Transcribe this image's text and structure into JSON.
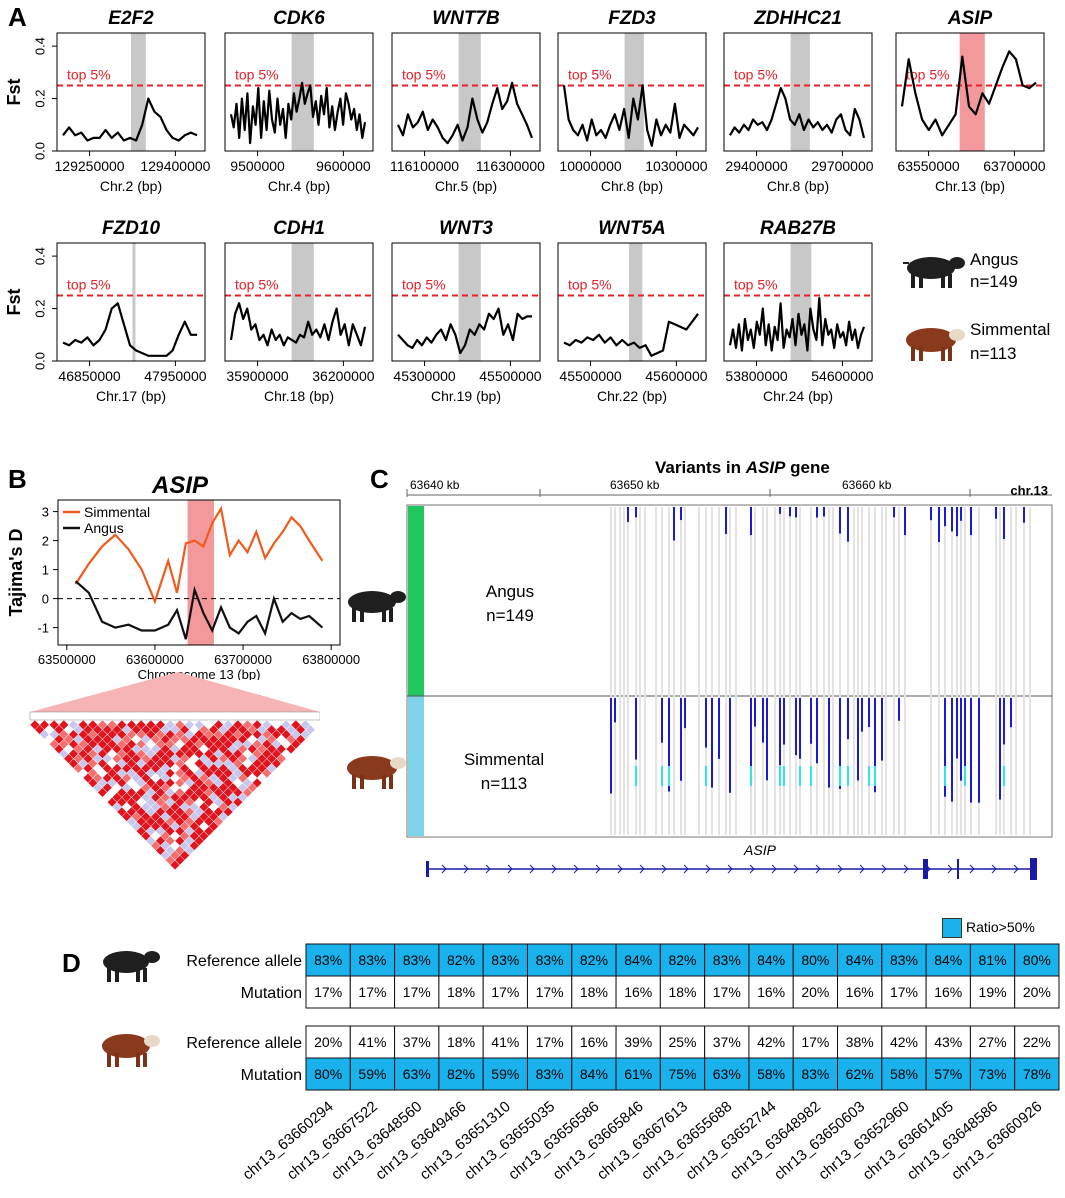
{
  "panel_labels": {
    "a": "A",
    "b": "B",
    "c": "C",
    "d": "D"
  },
  "colors": {
    "threshold": "#e8202a",
    "highlight_gray": "#c8c8c8",
    "highlight_pink": "#f3999c",
    "simmental": "#f05a1e",
    "angus": "#111111",
    "angus_bar": "#22c55e",
    "simmental_bar": "#7fd3e8",
    "variant_dark": "#1a1adb",
    "variant_light": "#2ee6e6",
    "cell_blue": "#1ab2ec",
    "gene_line": "#1a1aa8"
  },
  "panel_a": {
    "y_label": "Fst",
    "threshold_label": "top 5%",
    "y_ticks": [
      "0.0",
      "0.2",
      "0.4"
    ],
    "groups": {
      "angus": {
        "name": "Angus",
        "n": "n=149"
      },
      "simmental": {
        "name": "Simmental",
        "n": "n=113"
      }
    }
  },
  "chart_data": [
    {
      "type": "line",
      "title": "E2F2",
      "xlabel": "Chr.2 (bp)",
      "ylabel": "Fst",
      "x_ticks": [
        "129250000",
        "129400000"
      ],
      "ylim": [
        0,
        0.45
      ],
      "threshold": 0.25,
      "values": [
        0.06,
        0.09,
        0.06,
        0.07,
        0.04,
        0.05,
        0.05,
        0.08,
        0.05,
        0.07,
        0.04,
        0.05,
        0.04,
        0.1,
        0.2,
        0.15,
        0.13,
        0.08,
        0.05,
        0.04,
        0.06,
        0.07,
        0.06
      ]
    },
    {
      "type": "line",
      "title": "CDK6",
      "xlabel": "Chr.4 (bp)",
      "ylabel": "Fst",
      "x_ticks": [
        "9500000",
        "9600000"
      ],
      "ylim": [
        0,
        0.45
      ],
      "threshold": 0.25,
      "values": [
        0.14,
        0.09,
        0.18,
        0.05,
        0.2,
        0.08,
        0.22,
        0.03,
        0.17,
        0.1,
        0.24,
        0.05,
        0.19,
        0.08,
        0.23,
        0.12,
        0.07,
        0.2,
        0.1,
        0.16,
        0.05,
        0.18,
        0.12,
        0.22,
        0.15,
        0.2,
        0.26,
        0.18,
        0.22,
        0.25,
        0.13,
        0.19,
        0.1,
        0.21,
        0.14,
        0.24,
        0.09,
        0.17,
        0.08,
        0.15,
        0.2,
        0.1,
        0.22,
        0.18,
        0.12,
        0.16,
        0.08,
        0.14,
        0.05,
        0.11
      ]
    },
    {
      "type": "line",
      "title": "WNT7B",
      "xlabel": "Chr.5 (bp)",
      "ylabel": "Fst",
      "x_ticks": [
        "116100000",
        "116300000"
      ],
      "ylim": [
        0,
        0.45
      ],
      "threshold": 0.25,
      "values": [
        0.1,
        0.06,
        0.14,
        0.09,
        0.11,
        0.15,
        0.08,
        0.12,
        0.09,
        0.05,
        0.03,
        0.06,
        0.1,
        0.04,
        0.09,
        0.2,
        0.12,
        0.07,
        0.11,
        0.18,
        0.24,
        0.16,
        0.19,
        0.26,
        0.18,
        0.14,
        0.1,
        0.05
      ]
    },
    {
      "type": "line",
      "title": "FZD3",
      "xlabel": "Chr.8 (bp)",
      "ylabel": "Fst",
      "x_ticks": [
        "10000000",
        "10300000"
      ],
      "ylim": [
        0,
        0.45
      ],
      "threshold": 0.25,
      "values": [
        0.25,
        0.12,
        0.08,
        0.06,
        0.1,
        0.04,
        0.12,
        0.06,
        0.08,
        0.05,
        0.1,
        0.14,
        0.08,
        0.16,
        0.05,
        0.2,
        0.12,
        0.25,
        0.08,
        0.02,
        0.12,
        0.06,
        0.1,
        0.07,
        0.18,
        0.05,
        0.1,
        0.08,
        0.06,
        0.09
      ]
    },
    {
      "type": "line",
      "title": "ZDHHC21",
      "xlabel": "Chr.8 (bp)",
      "ylabel": "Fst",
      "x_ticks": [
        "29400000",
        "29700000"
      ],
      "ylim": [
        0,
        0.45
      ],
      "threshold": 0.25,
      "values": [
        0.06,
        0.09,
        0.07,
        0.1,
        0.08,
        0.12,
        0.1,
        0.11,
        0.08,
        0.12,
        0.18,
        0.24,
        0.2,
        0.12,
        0.1,
        0.14,
        0.08,
        0.12,
        0.09,
        0.11,
        0.08,
        0.1,
        0.07,
        0.12,
        0.14,
        0.08,
        0.06,
        0.16,
        0.12,
        0.05
      ]
    },
    {
      "type": "line",
      "title": "ASIP",
      "xlabel": "Chr.13 (bp)",
      "ylabel": "Fst",
      "x_ticks": [
        "63550000",
        "63700000"
      ],
      "ylim": [
        0,
        0.45
      ],
      "threshold": 0.25,
      "values": [
        0.17,
        0.35,
        0.22,
        0.12,
        0.08,
        0.12,
        0.06,
        0.1,
        0.14,
        0.36,
        0.17,
        0.14,
        0.22,
        0.18,
        0.25,
        0.32,
        0.38,
        0.35,
        0.25,
        0.24,
        0.26
      ]
    },
    {
      "type": "line",
      "title": "FZD10",
      "xlabel": "Chr.17 (bp)",
      "ylabel": "Fst",
      "x_ticks": [
        "46850000",
        "47950000"
      ],
      "ylim": [
        0,
        0.45
      ],
      "threshold": 0.25,
      "values": [
        0.07,
        0.06,
        0.08,
        0.07,
        0.09,
        0.06,
        0.08,
        0.12,
        0.2,
        0.22,
        0.14,
        0.06,
        0.04,
        0.03,
        0.02,
        0.02,
        0.02,
        0.02,
        0.04,
        0.1,
        0.15,
        0.1,
        0.1
      ]
    },
    {
      "type": "line",
      "title": "CDH1",
      "xlabel": "Chr.18 (bp)",
      "ylabel": "Fst",
      "x_ticks": [
        "35900000",
        "36200000"
      ],
      "ylim": [
        0,
        0.45
      ],
      "threshold": 0.25,
      "values": [
        0.08,
        0.18,
        0.22,
        0.16,
        0.2,
        0.12,
        0.14,
        0.08,
        0.1,
        0.06,
        0.12,
        0.08,
        0.1,
        0.06,
        0.09,
        0.08,
        0.07,
        0.1,
        0.09,
        0.15,
        0.1,
        0.12,
        0.09,
        0.14,
        0.08,
        0.15,
        0.2,
        0.1,
        0.14,
        0.06,
        0.14,
        0.1,
        0.06,
        0.13
      ]
    },
    {
      "type": "line",
      "title": "WNT3",
      "xlabel": "Chr.19 (bp)",
      "ylabel": "Fst",
      "x_ticks": [
        "45300000",
        "45500000"
      ],
      "ylim": [
        0,
        0.45
      ],
      "threshold": 0.25,
      "values": [
        0.1,
        0.08,
        0.06,
        0.05,
        0.08,
        0.06,
        0.09,
        0.07,
        0.1,
        0.12,
        0.08,
        0.14,
        0.1,
        0.03,
        0.06,
        0.12,
        0.1,
        0.14,
        0.12,
        0.18,
        0.16,
        0.2,
        0.1,
        0.14,
        0.08,
        0.18,
        0.16,
        0.17,
        0.17
      ]
    },
    {
      "type": "line",
      "title": "WNT5A",
      "xlabel": "Chr.22 (bp)",
      "ylabel": "Fst",
      "x_ticks": [
        "45500000",
        "45600000"
      ],
      "ylim": [
        0,
        0.45
      ],
      "threshold": 0.25,
      "values": [
        0.07,
        0.06,
        0.08,
        0.07,
        0.09,
        0.08,
        0.1,
        0.07,
        0.09,
        0.06,
        0.08,
        0.06,
        0.07,
        0.05,
        0.06,
        0.02,
        0.03,
        0.04,
        0.15,
        0.14,
        0.13,
        0.12,
        0.15,
        0.18
      ]
    },
    {
      "type": "line",
      "title": "RAB27B",
      "xlabel": "Chr.24 (bp)",
      "ylabel": "Fst",
      "x_ticks": [
        "53800000",
        "54600000"
      ],
      "ylim": [
        0,
        0.45
      ],
      "threshold": 0.25,
      "values": [
        0.06,
        0.12,
        0.05,
        0.14,
        0.04,
        0.16,
        0.08,
        0.12,
        0.05,
        0.15,
        0.1,
        0.2,
        0.06,
        0.14,
        0.04,
        0.13,
        0.08,
        0.22,
        0.05,
        0.12,
        0.09,
        0.16,
        0.06,
        0.18,
        0.1,
        0.14,
        0.04,
        0.2,
        0.12,
        0.08,
        0.24,
        0.06,
        0.16,
        0.1,
        0.12,
        0.05,
        0.14,
        0.09,
        0.11,
        0.06,
        0.15,
        0.08,
        0.12,
        0.05,
        0.1,
        0.13
      ]
    },
    {
      "type": "line",
      "title": "ASIP",
      "xlabel": "Chromosome 13 (bp)",
      "ylabel": "Tajima's D",
      "x_ticks": [
        "63500000",
        "63600000",
        "63700000",
        "63800000"
      ],
      "y_ticks": [
        "-1",
        "0",
        "1",
        "2",
        "3"
      ],
      "ylim": [
        -1.6,
        3.4
      ],
      "x": [
        63510000,
        63525000,
        63540000,
        63555000,
        63570000,
        63585000,
        63600000,
        63615000,
        63625000,
        63635000,
        63645000,
        63655000,
        63665000,
        63675000,
        63685000,
        63695000,
        63705000,
        63715000,
        63725000,
        63735000,
        63745000,
        63755000,
        63765000,
        63775000,
        63790000
      ],
      "series": [
        {
          "name": "Simmental",
          "values": [
            0.5,
            1.2,
            1.8,
            2.2,
            1.7,
            1.0,
            -0.1,
            1.3,
            0.2,
            1.9,
            2.0,
            1.8,
            2.6,
            3.1,
            1.5,
            2.0,
            1.6,
            2.3,
            1.4,
            1.9,
            2.3,
            2.8,
            2.5,
            2.0,
            1.3
          ]
        },
        {
          "name": "Angus",
          "values": [
            0.6,
            0.2,
            -0.8,
            -1.0,
            -0.9,
            -1.1,
            -1.1,
            -0.9,
            -0.4,
            -1.4,
            0.3,
            -0.5,
            -1.1,
            -0.3,
            -1.0,
            -1.2,
            -0.8,
            -0.6,
            -1.2,
            0.0,
            -0.8,
            -0.5,
            -0.7,
            -0.6,
            -1.0
          ]
        }
      ]
    }
  ],
  "panel_b": {
    "title": "ASIP",
    "y_label": "Tajima's D",
    "x_label": "Chromosome 13 (bp)",
    "legend": [
      "Simmental",
      "Angus"
    ]
  },
  "panel_c": {
    "title_prefix": "Variants in ",
    "gene": "ASIP",
    "title_suffix": " gene",
    "ticks": [
      "63640 kb",
      "63650 kb",
      "63660 kb"
    ],
    "chrom": "chr.13",
    "angus": {
      "name": "Angus",
      "n": "n=149"
    },
    "simmental": {
      "name": "Simmental",
      "n": "n=113"
    },
    "gene_label": "ASIP"
  },
  "panel_d": {
    "legend": "Ratio>50%",
    "row_labels": {
      "ref": "Reference allele",
      "mut": "Mutation"
    },
    "snps": [
      "chr13_63660294",
      "chr13_63667522",
      "chr13_63648560",
      "chr13_63649466",
      "chr13_63651310",
      "chr13_63655035",
      "chr13_63656586",
      "chr13_63665846",
      "chr13_63667613",
      "chr13_63655688",
      "chr13_63652744",
      "chr13_63648982",
      "chr13_63650603",
      "chr13_63652960",
      "chr13_63661405",
      "chr13_63648586",
      "chr13_63660926"
    ],
    "angus": {
      "ref": [
        "83%",
        "83%",
        "83%",
        "82%",
        "83%",
        "83%",
        "82%",
        "84%",
        "82%",
        "83%",
        "84%",
        "80%",
        "84%",
        "83%",
        "84%",
        "81%",
        "80%"
      ],
      "mut": [
        "17%",
        "17%",
        "17%",
        "18%",
        "17%",
        "17%",
        "18%",
        "16%",
        "18%",
        "17%",
        "16%",
        "20%",
        "16%",
        "17%",
        "16%",
        "19%",
        "20%"
      ]
    },
    "simmental": {
      "ref": [
        "20%",
        "41%",
        "37%",
        "18%",
        "41%",
        "17%",
        "16%",
        "39%",
        "25%",
        "37%",
        "42%",
        "17%",
        "38%",
        "42%",
        "43%",
        "27%",
        "22%"
      ],
      "mut": [
        "80%",
        "59%",
        "63%",
        "82%",
        "59%",
        "83%",
        "84%",
        "61%",
        "75%",
        "63%",
        "58%",
        "83%",
        "62%",
        "58%",
        "57%",
        "73%",
        "78%"
      ]
    }
  }
}
